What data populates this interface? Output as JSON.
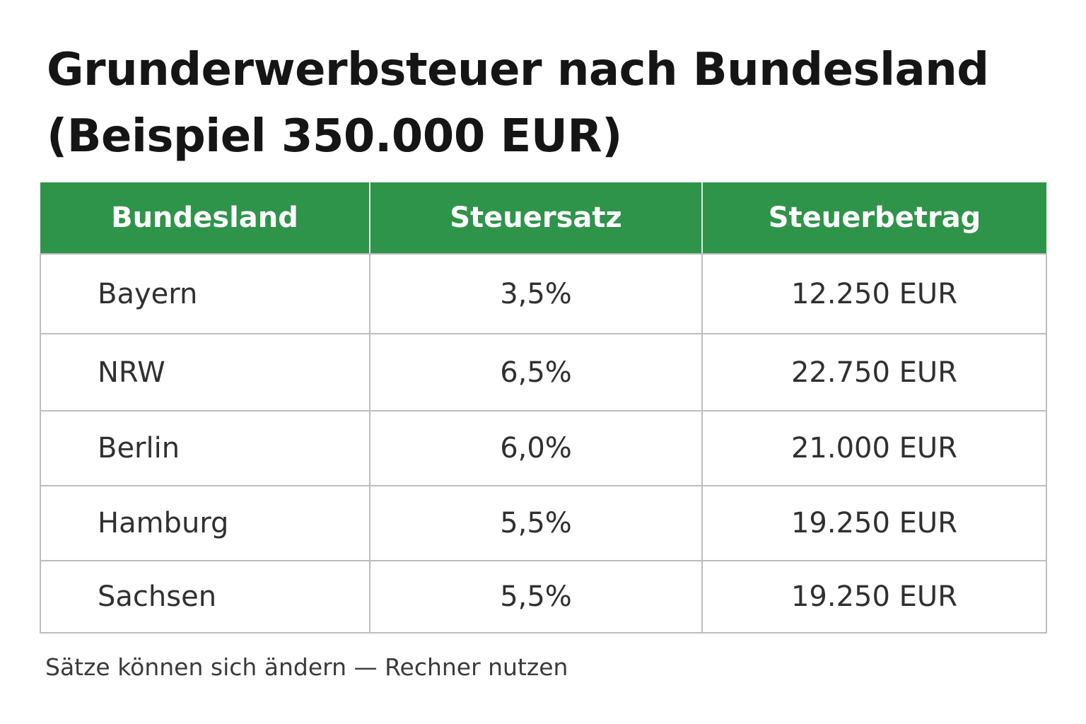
{
  "title": {
    "line1": "Grunderwerbsteuer nach Bundesland",
    "line2": "(Beispiel 350.000 EUR)"
  },
  "table": {
    "headers": [
      "Bundesland",
      "Steuersatz",
      "Steuerbetrag"
    ],
    "rows": [
      [
        "Bayern",
        "3,5%",
        "12.250 EUR"
      ],
      [
        "NRW",
        "6,5%",
        "22.750 EUR"
      ],
      [
        "Berlin",
        "6,0%",
        "21.000 EUR"
      ],
      [
        "Hamburg",
        "5,5%",
        "19.250 EUR"
      ],
      [
        "Sachsen",
        "5,5%",
        "19.250 EUR"
      ]
    ]
  },
  "footnote": "Sätze können sich ändern — Rechner nutzen",
  "colors": {
    "header_background": "#2e9449",
    "header_text": "#ffffff",
    "border": "#bdbdbd"
  }
}
